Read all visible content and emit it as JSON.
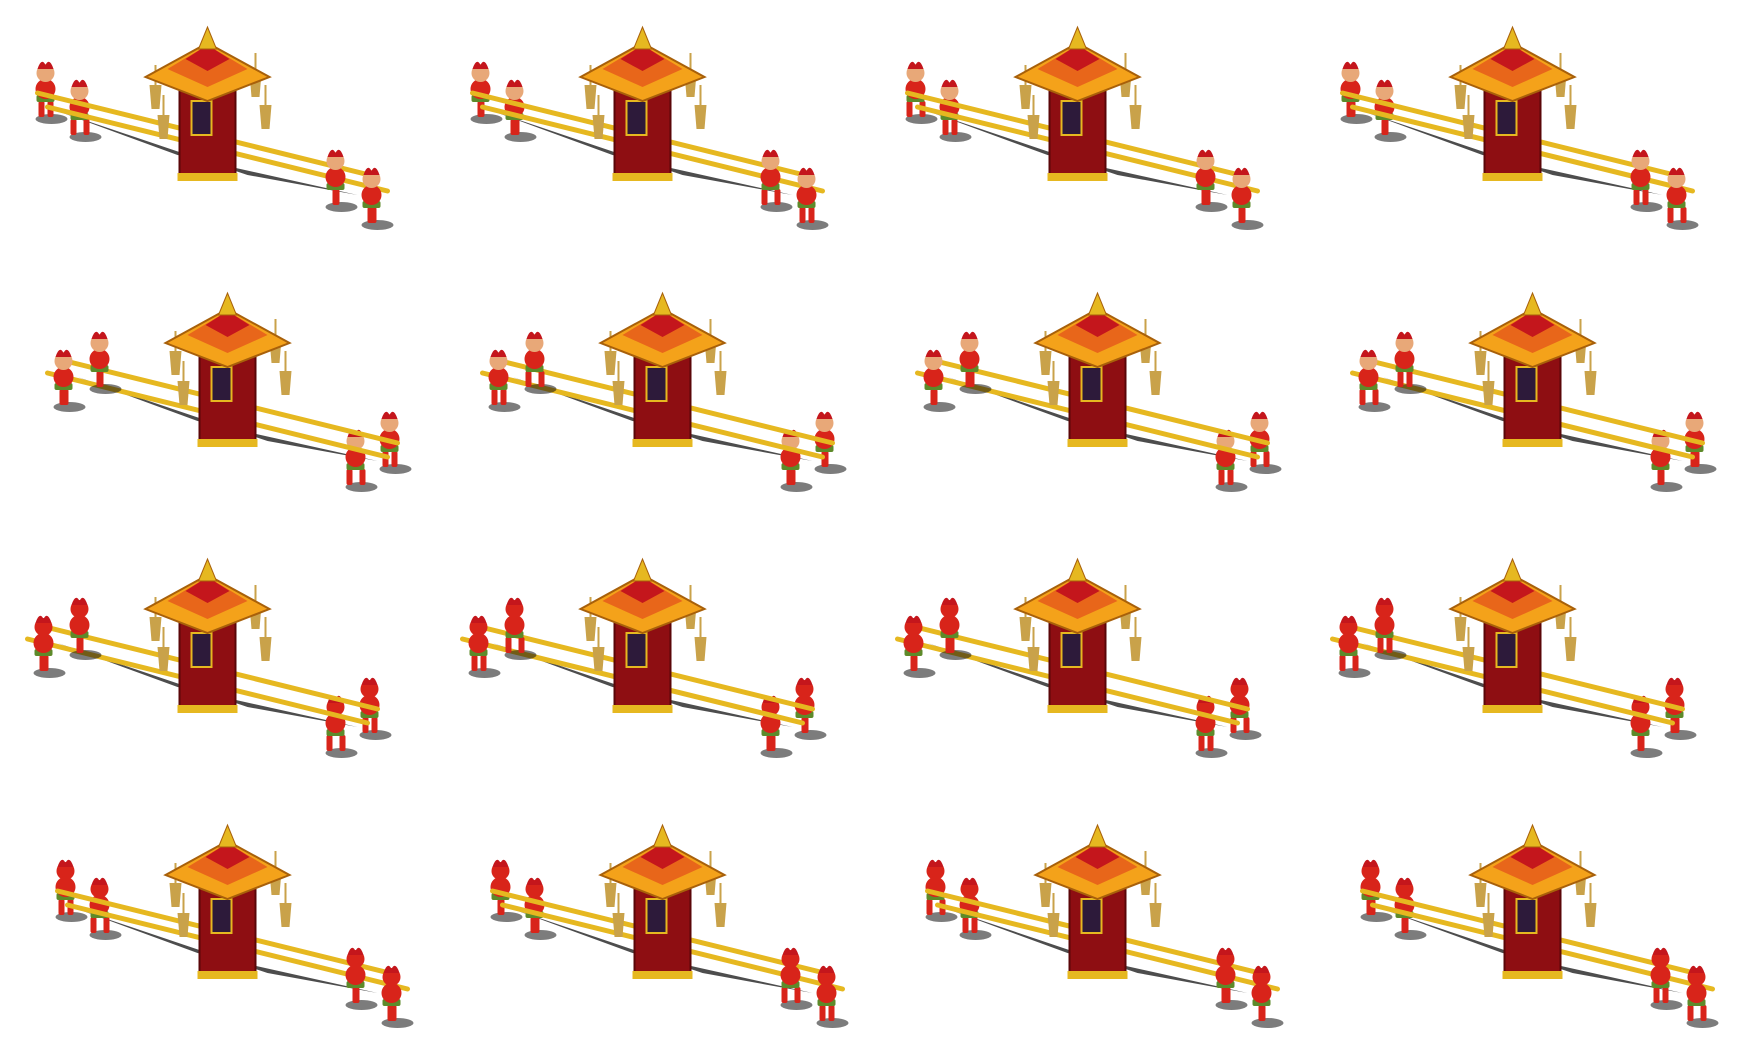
{
  "sprite_sheet": {
    "subject": "sedan-chair-sprite",
    "rows": 4,
    "columns": 4,
    "row_directions": [
      "south-east",
      "south-west",
      "north-west",
      "north-east"
    ],
    "walk_frames_per_row": 4,
    "colors": {
      "background": "#ffffff",
      "roof_gold": "#f4a21a",
      "roof_orange": "#e8661a",
      "roof_red": "#c4161c",
      "cabin_red": "#8e0e12",
      "pole_gold": "#e6b820",
      "tassel_tan": "#c9a24a",
      "porter_red": "#d8241a",
      "porter_skin": "#e8a878",
      "porter_green": "#5d8a2a",
      "shadow": "#111111"
    }
  }
}
